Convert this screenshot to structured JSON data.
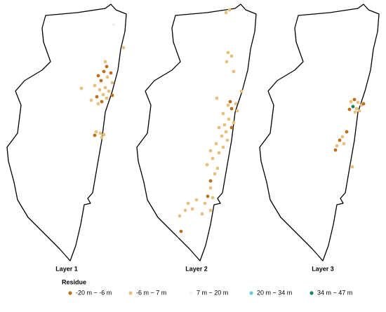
{
  "panels": [
    {
      "label": "Layer 1"
    },
    {
      "label": "Layer 2"
    },
    {
      "label": "Layer 3"
    }
  ],
  "legend": {
    "title": "Residue",
    "items": [
      {
        "label": "-20 m − -6 m",
        "color": "#bf6f1c"
      },
      {
        "label": "-6 m − 7 m",
        "color": "#e6c17e"
      },
      {
        "label": "7 m − 20 m",
        "color": "#f2f2f2"
      },
      {
        "label": "20 m − 34 m",
        "color": "#6cc6d8"
      },
      {
        "label": "34 m − 47 m",
        "color": "#17875a"
      }
    ]
  }
}
